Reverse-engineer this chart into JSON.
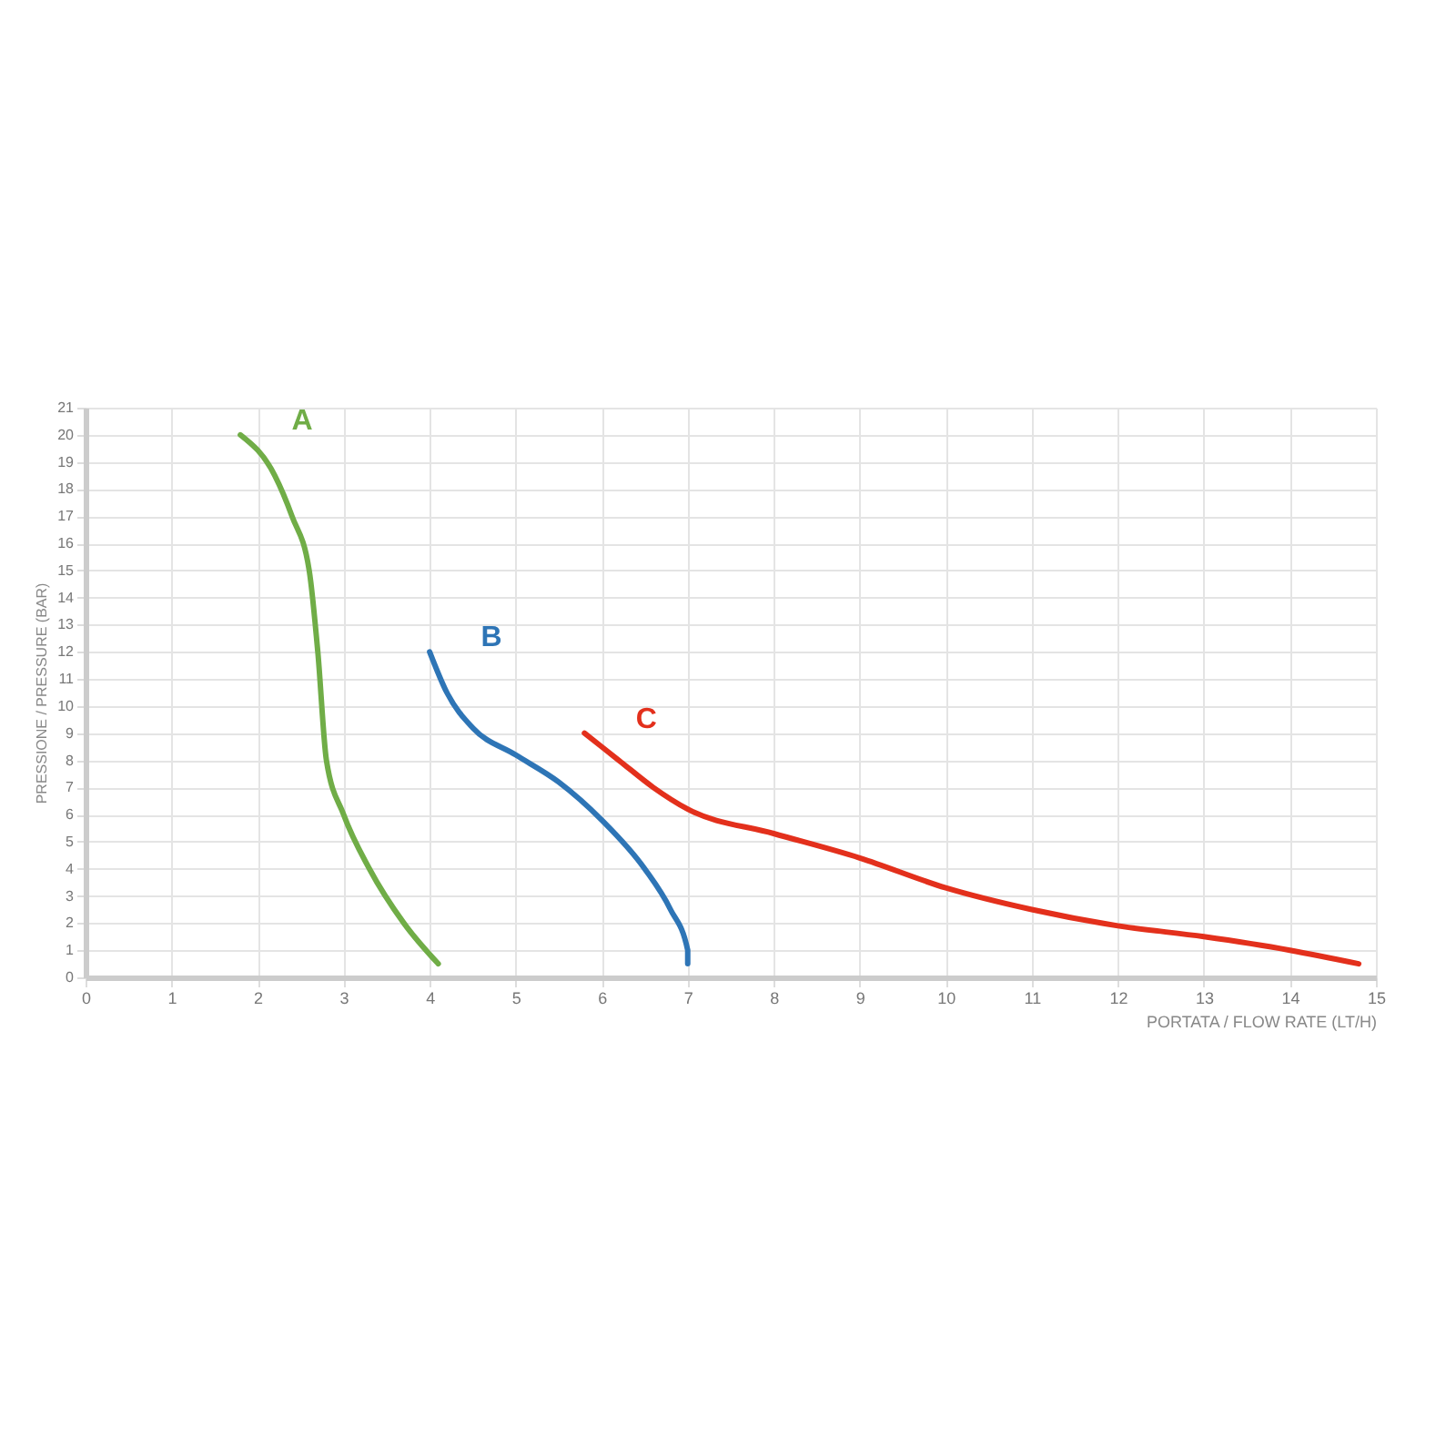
{
  "chart_data": {
    "type": "line",
    "xlabel": "PORTATA / FLOW RATE (LT/H)",
    "ylabel": "PRESSIONE / PRESSURE (BAR)",
    "xlim": [
      0,
      15
    ],
    "xticks": [
      0,
      1,
      2,
      3,
      4,
      5,
      6,
      7,
      8,
      9,
      10,
      11,
      12,
      13,
      14,
      15
    ],
    "ylim": [
      0,
      21
    ],
    "yticks": [
      0,
      1,
      2,
      3,
      4,
      5,
      6,
      7,
      8,
      9,
      10,
      11,
      12,
      13,
      14,
      15,
      16,
      17,
      18,
      19,
      20,
      21
    ],
    "grid": true,
    "legend": false,
    "marker": "none",
    "line_style": "solid",
    "series": [
      {
        "name": "A",
        "color": "#70ad47",
        "x": [
          1.8,
          2.2,
          2.4,
          2.6,
          2.7,
          2.8,
          3.0,
          3.3,
          3.7,
          4.1
        ],
        "values": [
          20,
          18.5,
          17,
          15,
          12,
          8,
          6,
          4,
          2,
          0.5
        ]
      },
      {
        "name": "B",
        "color": "#2e75b6",
        "x": [
          4.0,
          4.2,
          4.5,
          5.0,
          5.5,
          6.0,
          6.5,
          6.8,
          7.0,
          7.0
        ],
        "values": [
          12,
          10.5,
          9.2,
          8.2,
          7.2,
          5.8,
          4,
          2.5,
          1,
          0.5
        ]
      },
      {
        "name": "C",
        "color": "#e3301c",
        "x": [
          5.8,
          6.2,
          6.6,
          7.0,
          8,
          9,
          10,
          11,
          12,
          13,
          14,
          14.8
        ],
        "values": [
          9,
          8,
          7,
          6.2,
          5.3,
          4.4,
          3.3,
          2.5,
          1.9,
          1.5,
          1,
          0.5
        ]
      }
    ]
  }
}
